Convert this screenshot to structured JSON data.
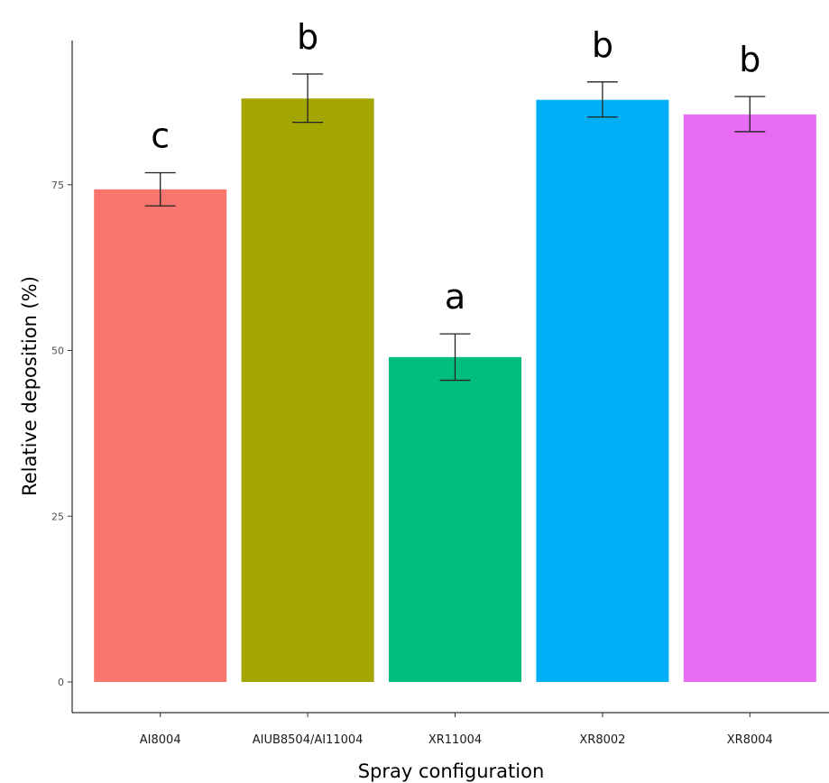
{
  "chart_data": {
    "type": "bar",
    "title": "",
    "xlabel": "Spray configuration",
    "ylabel": "Relative deposition (%)",
    "ylim": [
      0,
      100
    ],
    "yticks": [
      0,
      25,
      50,
      75
    ],
    "grid": false,
    "legend": "none",
    "categories": [
      "AI8004",
      "AIUB8504/AI11004",
      "XR11004",
      "XR8002",
      "XR8004"
    ],
    "values": [
      74.3,
      88.0,
      49.0,
      87.8,
      85.6
    ],
    "error_low": [
      71.8,
      84.4,
      45.5,
      85.2,
      83.0
    ],
    "error_high": [
      76.8,
      91.7,
      52.5,
      90.5,
      88.3
    ],
    "significance_letters": [
      "c",
      "b",
      "a",
      "b",
      "b"
    ],
    "colors": [
      "#F8766D",
      "#A3A500",
      "#00BF7D",
      "#00B0F6",
      "#E76BF3"
    ]
  }
}
